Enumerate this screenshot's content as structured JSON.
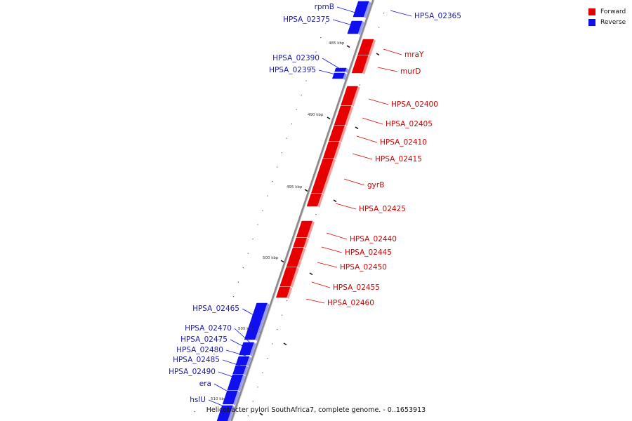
{
  "caption": "Helicobacter pylori SouthAfrica7, complete genome. - 0..1653913",
  "legend": [
    {
      "label": "Forward",
      "color": "#e60000"
    },
    {
      "label": "Reverse",
      "color": "#1010ee"
    }
  ],
  "colors": {
    "forward": "#e60000",
    "forward_shade": "#f6a0a0",
    "reverse": "#1010ee",
    "reverse_shade": "#9a9aff",
    "backbone": "#8a8a8a",
    "forward_label": "#cc0000",
    "reverse_label": "#1a1aaa"
  },
  "genes": [
    {
      "label": "rpmB",
      "strand": "reverse"
    },
    {
      "label": "HPSA_02365",
      "strand": "reverse"
    },
    {
      "label": "HPSA_02375",
      "strand": "reverse"
    },
    {
      "label": "mraY",
      "strand": "forward"
    },
    {
      "label": "murD",
      "strand": "forward"
    },
    {
      "label": "HPSA_02390",
      "strand": "reverse"
    },
    {
      "label": "HPSA_02395",
      "strand": "reverse"
    },
    {
      "label": "HPSA_02400",
      "strand": "forward"
    },
    {
      "label": "HPSA_02405",
      "strand": "forward"
    },
    {
      "label": "HPSA_02410",
      "strand": "forward"
    },
    {
      "label": "HPSA_02415",
      "strand": "forward"
    },
    {
      "label": "gyrB",
      "strand": "forward"
    },
    {
      "label": "HPSA_02425",
      "strand": "forward"
    },
    {
      "label": "HPSA_02440",
      "strand": "forward"
    },
    {
      "label": "HPSA_02445",
      "strand": "forward"
    },
    {
      "label": "HPSA_02450",
      "strand": "forward"
    },
    {
      "label": "HPSA_02455",
      "strand": "forward"
    },
    {
      "label": "HPSA_02460",
      "strand": "forward"
    },
    {
      "label": "HPSA_02465",
      "strand": "reverse"
    },
    {
      "label": "HPSA_02470",
      "strand": "reverse"
    },
    {
      "label": "HPSA_02475",
      "strand": "reverse"
    },
    {
      "label": "HPSA_02480",
      "strand": "reverse"
    },
    {
      "label": "HPSA_02485",
      "strand": "reverse"
    },
    {
      "label": "HPSA_02490",
      "strand": "reverse"
    },
    {
      "label": "era",
      "strand": "reverse"
    },
    {
      "label": "hslU",
      "strand": "reverse"
    }
  ],
  "ticks": [
    "485 kbp",
    "490 kbp",
    "495 kbp",
    "500 kbp",
    "505 kbp",
    "510 kbp"
  ]
}
